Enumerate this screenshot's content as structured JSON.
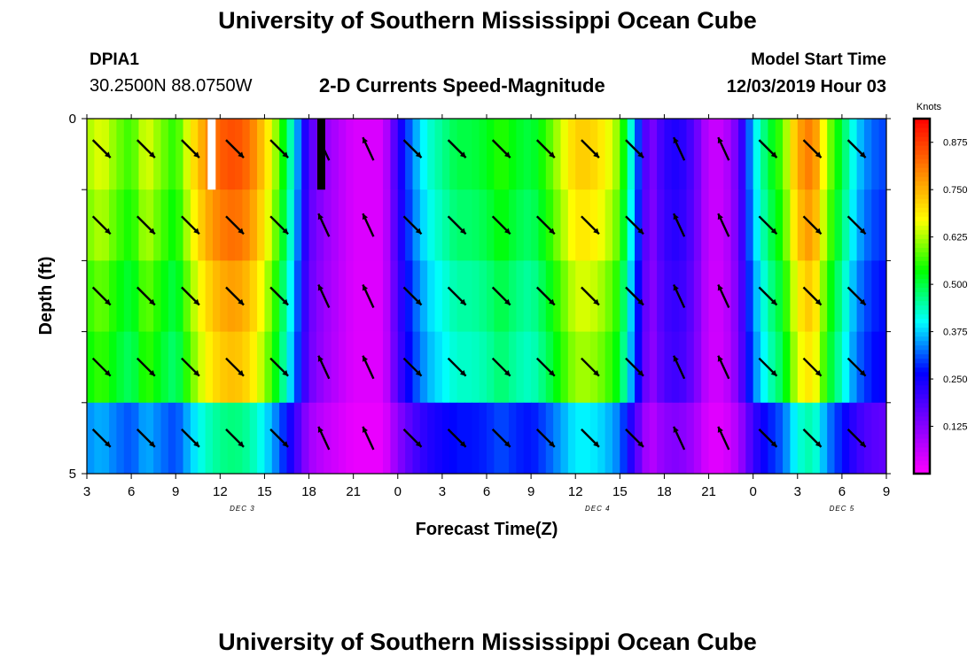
{
  "header": {
    "title": "University of Southern Mississippi Ocean Cube",
    "station": "DPIA1",
    "location": "30.2500N 88.0750W",
    "subtitle": "2-D Currents Speed-Magnitude",
    "model_label": "Model Start Time",
    "model_time": "12/03/2019 Hour 03"
  },
  "footer": {
    "title": "University of Southern Mississippi Ocean Cube"
  },
  "chart_data": {
    "type": "heatmap",
    "title": "2-D Currents Speed-Magnitude",
    "xlabel": "Forecast Time(Z)",
    "ylabel": "Depth (ft)",
    "x_tick_labels": [
      "3",
      "6",
      "9",
      "12",
      "15",
      "18",
      "21",
      "0",
      "3",
      "6",
      "9",
      "12",
      "15",
      "18",
      "21",
      "0",
      "3",
      "6",
      "9"
    ],
    "date_labels": [
      {
        "label": "DEC 3",
        "tick_index": 3.5
      },
      {
        "label": "DEC 4",
        "tick_index": 11.5
      },
      {
        "label": "DEC 5",
        "tick_index": 17
      }
    ],
    "y_tick_labels": [
      {
        "label": "0",
        "depth": 0
      },
      {
        "label": "5",
        "depth": 5
      }
    ],
    "ylim": [
      0,
      5
    ],
    "hours_range": [
      0,
      54
    ],
    "depth_layers": 5,
    "speed_profile_knots": [
      [
        0,
        0.62
      ],
      [
        1,
        0.66
      ],
      [
        2,
        0.6
      ],
      [
        3,
        0.56
      ],
      [
        4,
        0.66
      ],
      [
        5,
        0.6
      ],
      [
        6,
        0.55
      ],
      [
        7,
        0.68
      ],
      [
        8,
        0.78
      ],
      [
        9,
        0.84
      ],
      [
        10,
        0.86
      ],
      [
        11,
        0.82
      ],
      [
        12,
        0.72
      ],
      [
        13,
        0.58
      ],
      [
        14,
        0.4
      ],
      [
        15,
        0.18
      ],
      [
        16,
        0.12
      ],
      [
        17,
        0.08
      ],
      [
        18,
        0.04
      ],
      [
        19,
        0.04
      ],
      [
        20,
        0.04
      ],
      [
        21,
        0.22
      ],
      [
        22,
        0.34
      ],
      [
        23,
        0.42
      ],
      [
        24,
        0.46
      ],
      [
        25,
        0.5
      ],
      [
        26,
        0.5
      ],
      [
        27,
        0.52
      ],
      [
        28,
        0.56
      ],
      [
        29,
        0.52
      ],
      [
        30,
        0.5
      ],
      [
        31,
        0.56
      ],
      [
        32,
        0.64
      ],
      [
        33,
        0.72
      ],
      [
        34,
        0.72
      ],
      [
        35,
        0.68
      ],
      [
        36,
        0.6
      ],
      [
        37,
        0.36
      ],
      [
        38,
        0.12
      ],
      [
        39,
        0.22
      ],
      [
        40,
        0.24
      ],
      [
        41,
        0.18
      ],
      [
        42,
        0.06
      ],
      [
        43,
        0.06
      ],
      [
        44,
        0.16
      ],
      [
        45,
        0.38
      ],
      [
        46,
        0.5
      ],
      [
        47,
        0.58
      ],
      [
        48,
        0.76
      ],
      [
        49,
        0.82
      ],
      [
        50,
        0.62
      ],
      [
        51,
        0.5
      ],
      [
        52,
        0.38
      ],
      [
        53,
        0.32
      ],
      [
        54,
        0.3
      ]
    ],
    "depth_factors": [
      1.0,
      0.96,
      0.9,
      0.86,
      0.8
    ],
    "bottom_row_factor": 0.55,
    "arrow_hours": [
      1,
      4,
      7,
      10,
      13,
      16,
      19,
      22,
      25,
      28,
      31,
      34,
      37,
      40,
      43,
      46,
      49,
      52
    ],
    "arrow_direction": {
      "default": "southeast",
      "northwest_near_hours": [
        17,
        41
      ]
    },
    "missing_cells": [
      {
        "hour": 8.4,
        "layer": 0,
        "color": "#ffffff"
      },
      {
        "hour": 15.8,
        "layer": 0,
        "color": "#000000"
      }
    ],
    "colorbar": {
      "label": "Knots",
      "min": 0,
      "max": 0.9375,
      "ticks": [
        "0.125",
        "0.250",
        "0.375",
        "0.500",
        "0.625",
        "0.750",
        "0.875"
      ],
      "colormap": [
        "#ff00ff",
        "#8000ff",
        "#0000ff",
        "#00ffff",
        "#00ff00",
        "#ffff00",
        "#ff8000",
        "#ff0000"
      ]
    }
  }
}
